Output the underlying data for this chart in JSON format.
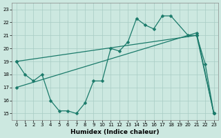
{
  "xlabel": "Humidex (Indice chaleur)",
  "xlim": [
    -0.5,
    23.5
  ],
  "ylim": [
    14.5,
    23.5
  ],
  "yticks": [
    15,
    16,
    17,
    18,
    19,
    20,
    21,
    22,
    23
  ],
  "xticks": [
    0,
    1,
    2,
    3,
    4,
    5,
    6,
    7,
    8,
    9,
    10,
    11,
    12,
    13,
    14,
    15,
    16,
    17,
    18,
    19,
    20,
    21,
    22,
    23
  ],
  "bg_color": "#cce8e0",
  "grid_color": "#a8ccc4",
  "line_color": "#1a7a6a",
  "line1_x": [
    0,
    1,
    2,
    3,
    4,
    5,
    6,
    7,
    8,
    9,
    10,
    11,
    12,
    13,
    14,
    15,
    16,
    17,
    18,
    20,
    21,
    22,
    23
  ],
  "line1_y": [
    19.0,
    18.0,
    17.5,
    18.0,
    16.0,
    15.2,
    15.2,
    15.0,
    15.8,
    17.5,
    17.5,
    20.0,
    19.8,
    20.5,
    22.3,
    21.8,
    21.5,
    22.5,
    22.5,
    21.0,
    21.0,
    18.8,
    15.0
  ],
  "line2_x": [
    0,
    21,
    23
  ],
  "line2_y": [
    19.0,
    21.0,
    15.0
  ],
  "line3_x": [
    0,
    21,
    23
  ],
  "line3_y": [
    17.0,
    21.2,
    15.0
  ],
  "markersize": 2.5,
  "linewidth": 0.9
}
